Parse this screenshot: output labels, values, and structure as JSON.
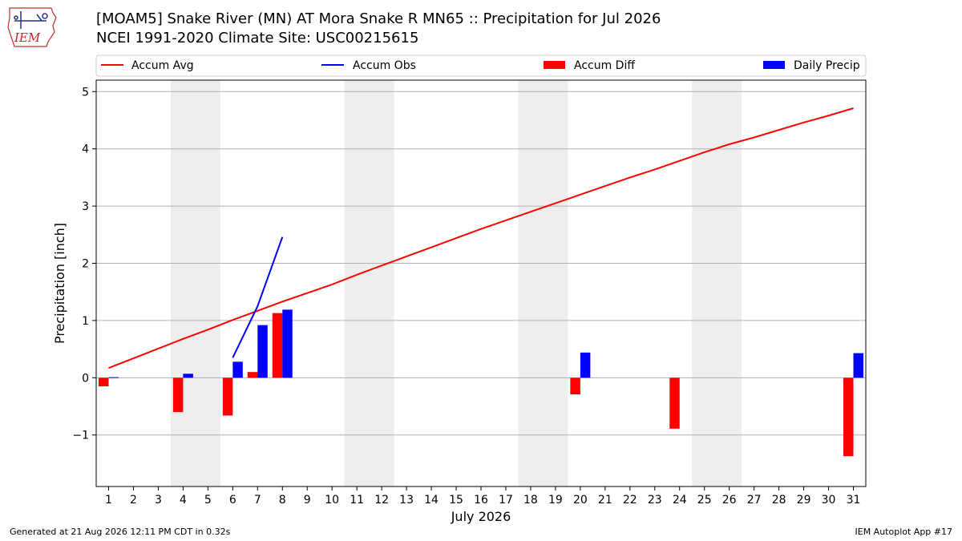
{
  "logo": {
    "text": "IEM"
  },
  "header": {
    "title": "[MOAM5] Snake River (MN)  AT Mora Snake R MN65 :: Precipitation for Jul 2026",
    "subtitle": "NCEI 1991-2020 Climate Site: USC00215615"
  },
  "footer": {
    "generated": "Generated at 21 Aug 2026 12:11 PM CDT in 0.32s",
    "app": "IEM Autoplot App #17"
  },
  "colors": {
    "avg": "#ff0000",
    "obs": "#0000ff",
    "diff": "#ff0000",
    "daily": "#0000ff",
    "weekend_band": "#eeeeee",
    "grid": "#b0b0b0"
  },
  "chart_data": {
    "type": "bar",
    "xlabel": "July 2026",
    "ylabel": "Precipitation [inch]",
    "xlim": [
      0.5,
      31.5
    ],
    "ylim": [
      -1.9,
      5.2
    ],
    "yticks": [
      -1,
      0,
      1,
      2,
      3,
      4,
      5
    ],
    "ytick_labels": [
      "−1",
      "0",
      "1",
      "2",
      "3",
      "4",
      "5"
    ],
    "days": [
      1,
      2,
      3,
      4,
      5,
      6,
      7,
      8,
      9,
      10,
      11,
      12,
      13,
      14,
      15,
      16,
      17,
      18,
      19,
      20,
      21,
      22,
      23,
      24,
      25,
      26,
      27,
      28,
      29,
      30,
      31
    ],
    "weekend_bands": [
      [
        3.5,
        5.5
      ],
      [
        10.5,
        12.5
      ],
      [
        17.5,
        19.5
      ],
      [
        24.5,
        26.5
      ]
    ],
    "grid": true,
    "legend_position": "top",
    "legend": [
      {
        "label": "Accum Avg",
        "kind": "line",
        "color": "#ff0000"
      },
      {
        "label": "Accum Obs",
        "kind": "line",
        "color": "#0000ff"
      },
      {
        "label": "Accum Diff",
        "kind": "bar",
        "color": "#ff0000"
      },
      {
        "label": "Daily Precip",
        "kind": "bar",
        "color": "#0000ff"
      }
    ],
    "series": [
      {
        "name": "Accum Avg",
        "type": "line",
        "x": [
          1,
          2,
          3,
          4,
          5,
          6,
          7,
          8,
          9,
          10,
          11,
          12,
          13,
          14,
          15,
          16,
          17,
          18,
          19,
          20,
          21,
          22,
          23,
          24,
          25,
          26,
          27,
          28,
          29,
          30,
          31
        ],
        "values": [
          0.17,
          0.34,
          0.51,
          0.68,
          0.84,
          1.01,
          1.17,
          1.33,
          1.48,
          1.63,
          1.8,
          1.96,
          2.12,
          2.28,
          2.44,
          2.6,
          2.75,
          2.9,
          3.05,
          3.2,
          3.35,
          3.5,
          3.64,
          3.79,
          3.94,
          4.08,
          4.2,
          4.33,
          4.46,
          4.58,
          4.71
        ]
      },
      {
        "name": "Accum Obs",
        "type": "line",
        "x": [
          6,
          7,
          8
        ],
        "values": [
          0.35,
          1.25,
          2.46
        ]
      },
      {
        "name": "Accum Diff",
        "type": "bar",
        "x": [
          1,
          4,
          6,
          7,
          8,
          20,
          24,
          31
        ],
        "values": [
          -0.15,
          -0.6,
          -0.66,
          0.1,
          1.13,
          -0.29,
          -0.89,
          -1.37
        ]
      },
      {
        "name": "Daily Precip",
        "type": "bar",
        "x": [
          1,
          4,
          6,
          7,
          8,
          20,
          31
        ],
        "values": [
          0.01,
          0.07,
          0.28,
          0.92,
          1.19,
          0.44,
          0.43
        ]
      }
    ]
  }
}
